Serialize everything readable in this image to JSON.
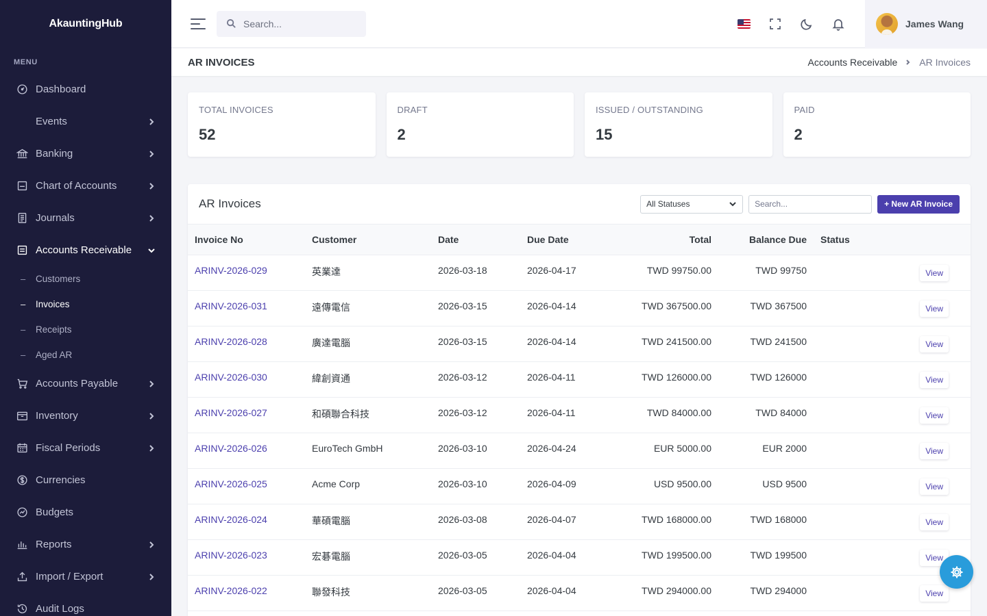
{
  "brand": "AkauntingHub",
  "sidebar": {
    "menu_title": "MENU",
    "items": [
      {
        "label": "Dashboard",
        "icon": "dashboard-icon"
      },
      {
        "label": "Events",
        "icon": ""
      },
      {
        "label": "Banking",
        "icon": "bank-icon"
      },
      {
        "label": "Chart of Accounts",
        "icon": "ledger-icon"
      },
      {
        "label": "Journals",
        "icon": "journal-icon"
      },
      {
        "label": "Accounts Receivable",
        "icon": "receivable-icon"
      },
      {
        "label": "Accounts Payable",
        "icon": "cart-icon"
      },
      {
        "label": "Inventory",
        "icon": "inventory-icon"
      },
      {
        "label": "Fiscal Periods",
        "icon": "calendar-icon"
      },
      {
        "label": "Currencies",
        "icon": "currency-icon"
      },
      {
        "label": "Budgets",
        "icon": "budget-icon"
      },
      {
        "label": "Reports",
        "icon": "reports-icon"
      },
      {
        "label": "Import / Export",
        "icon": "upload-icon"
      },
      {
        "label": "Audit Logs",
        "icon": "history-icon"
      }
    ],
    "ar_submenu": [
      {
        "label": "Customers"
      },
      {
        "label": "Invoices"
      },
      {
        "label": "Receipts"
      },
      {
        "label": "Aged AR"
      }
    ]
  },
  "topbar": {
    "search_placeholder": "Search...",
    "user_name": "James Wang"
  },
  "page": {
    "title": "AR INVOICES",
    "breadcrumb_parent": "Accounts Receivable",
    "breadcrumb_current": "AR Invoices"
  },
  "stats": [
    {
      "label": "TOTAL INVOICES",
      "value": "52"
    },
    {
      "label": "DRAFT",
      "value": "2"
    },
    {
      "label": "ISSUED / OUTSTANDING",
      "value": "15"
    },
    {
      "label": "PAID",
      "value": "2"
    }
  ],
  "table": {
    "title": "AR Invoices",
    "status_filter": "All Statuses",
    "search_placeholder": "Search...",
    "new_button": "+ New AR Invoice",
    "view_label": "View",
    "columns": [
      "Invoice No",
      "Customer",
      "Date",
      "Due Date",
      "Total",
      "Balance Due",
      "Status"
    ],
    "rows": [
      {
        "invoice_no": "ARINV-2026-029",
        "customer": "英業達",
        "date": "2026-03-18",
        "due_date": "2026-04-17",
        "total": "TWD 99750.00",
        "balance_due": "TWD 99750",
        "status": ""
      },
      {
        "invoice_no": "ARINV-2026-031",
        "customer": "遠傳電信",
        "date": "2026-03-15",
        "due_date": "2026-04-14",
        "total": "TWD 367500.00",
        "balance_due": "TWD 367500",
        "status": ""
      },
      {
        "invoice_no": "ARINV-2026-028",
        "customer": "廣達電腦",
        "date": "2026-03-15",
        "due_date": "2026-04-14",
        "total": "TWD 241500.00",
        "balance_due": "TWD 241500",
        "status": ""
      },
      {
        "invoice_no": "ARINV-2026-030",
        "customer": "緯創資通",
        "date": "2026-03-12",
        "due_date": "2026-04-11",
        "total": "TWD 126000.00",
        "balance_due": "TWD 126000",
        "status": ""
      },
      {
        "invoice_no": "ARINV-2026-027",
        "customer": "和碩聯合科技",
        "date": "2026-03-12",
        "due_date": "2026-04-11",
        "total": "TWD 84000.00",
        "balance_due": "TWD 84000",
        "status": ""
      },
      {
        "invoice_no": "ARINV-2026-026",
        "customer": "EuroTech GmbH",
        "date": "2026-03-10",
        "due_date": "2026-04-24",
        "total": "EUR 5000.00",
        "balance_due": "EUR 2000",
        "status": ""
      },
      {
        "invoice_no": "ARINV-2026-025",
        "customer": "Acme Corp",
        "date": "2026-03-10",
        "due_date": "2026-04-09",
        "total": "USD 9500.00",
        "balance_due": "USD 9500",
        "status": ""
      },
      {
        "invoice_no": "ARINV-2026-024",
        "customer": "華碩電腦",
        "date": "2026-03-08",
        "due_date": "2026-04-07",
        "total": "TWD 168000.00",
        "balance_due": "TWD 168000",
        "status": ""
      },
      {
        "invoice_no": "ARINV-2026-023",
        "customer": "宏碁電腦",
        "date": "2026-03-05",
        "due_date": "2026-04-04",
        "total": "TWD 199500.00",
        "balance_due": "TWD 199500",
        "status": ""
      },
      {
        "invoice_no": "ARINV-2026-022",
        "customer": "聯發科技",
        "date": "2026-03-05",
        "due_date": "2026-04-04",
        "total": "TWD 294000.00",
        "balance_due": "TWD 294000",
        "status": ""
      }
    ]
  },
  "colors": {
    "sidebar_bg": "#1c1c3a",
    "accent": "#4b3fad",
    "fab": "#299cdb"
  }
}
